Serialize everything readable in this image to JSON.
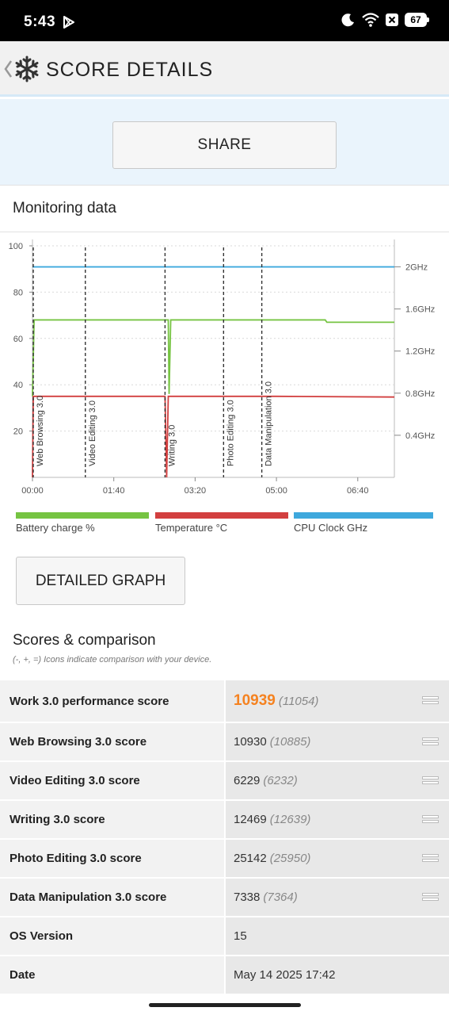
{
  "status_bar": {
    "time": "5:43",
    "battery": "67",
    "icons": [
      "play-store-icon",
      "moon-icon",
      "wifi-icon",
      "close-box-icon",
      "battery-icon"
    ]
  },
  "header": {
    "title": "SCORE DETAILS",
    "icons": [
      "chevron-left-icon",
      "snowflake-icon"
    ]
  },
  "share": {
    "label": "SHARE"
  },
  "monitoring": {
    "title": "Monitoring data",
    "detail_button": "DETAILED GRAPH",
    "legend": [
      {
        "label": "Battery charge %",
        "color": "#76c442"
      },
      {
        "label": "Temperature °C",
        "color": "#d23f3f"
      },
      {
        "label": "CPU Clock GHz",
        "color": "#3ea8dd"
      }
    ]
  },
  "chart_data": {
    "type": "line",
    "x_ticks": [
      "00:00",
      "01:40",
      "03:20",
      "05:00",
      "06:40"
    ],
    "y_left_ticks": [
      "100",
      "80",
      "60",
      "40",
      "20"
    ],
    "y_right_ticks": [
      "2GHz",
      "1.6GHz",
      "1.2GHz",
      "0.8GHz",
      "0.4GHz"
    ],
    "ylim_left": [
      0,
      100
    ],
    "ylim_right": [
      0,
      2.2
    ],
    "xlim_seconds": [
      0,
      445
    ],
    "grid": true,
    "series": [
      {
        "name": "Battery charge %",
        "color": "#76c442",
        "points": [
          [
            0,
            35
          ],
          [
            2,
            68
          ],
          [
            167,
            68
          ],
          [
            168,
            36
          ],
          [
            170,
            68
          ],
          [
            360,
            68
          ],
          [
            362,
            67
          ],
          [
            445,
            67
          ]
        ]
      },
      {
        "name": "Temperature °C",
        "color": "#d23f3f",
        "points": [
          [
            0,
            0
          ],
          [
            1,
            35
          ],
          [
            163,
            35
          ],
          [
            165,
            0
          ],
          [
            167,
            35
          ],
          [
            300,
            35
          ],
          [
            445,
            34.7
          ]
        ]
      },
      {
        "name": "CPU Clock GHz",
        "color": "#3ea8dd",
        "points": [
          [
            0,
            2.0
          ],
          [
            445,
            2.0
          ]
        ]
      }
    ],
    "sections": [
      {
        "label": "Web Browsing 3.0",
        "start": 0
      },
      {
        "label": "Video Editing 3.0",
        "start": 65
      },
      {
        "label": "Writing 3.0",
        "start": 163
      },
      {
        "label": "Photo Editing 3.0",
        "start": 235
      },
      {
        "label": "Data Manipulation 3.0",
        "start": 282
      }
    ]
  },
  "scores": {
    "title": "Scores & comparison",
    "subtitle": "(-, +, =) Icons indicate comparison with your device.",
    "rows": [
      {
        "name": "Work 3.0 performance score",
        "value": "10939",
        "ref": "(11054)",
        "icon": "equal-icon"
      },
      {
        "name": "Web Browsing 3.0 score",
        "value": "10930",
        "ref": "(10885)",
        "icon": "equal-icon"
      },
      {
        "name": "Video Editing 3.0 score",
        "value": "6229",
        "ref": "(6232)",
        "icon": "equal-icon"
      },
      {
        "name": "Writing 3.0 score",
        "value": "12469",
        "ref": "(12639)",
        "icon": "equal-icon"
      },
      {
        "name": "Photo Editing 3.0 score",
        "value": "25142",
        "ref": "(25950)",
        "icon": "equal-icon"
      },
      {
        "name": "Data Manipulation 3.0 score",
        "value": "7338",
        "ref": "(7364)",
        "icon": "equal-icon"
      },
      {
        "name": "OS Version",
        "value": "15",
        "ref": ""
      },
      {
        "name": "Date",
        "value": "May 14 2025 17:42",
        "ref": ""
      }
    ]
  }
}
